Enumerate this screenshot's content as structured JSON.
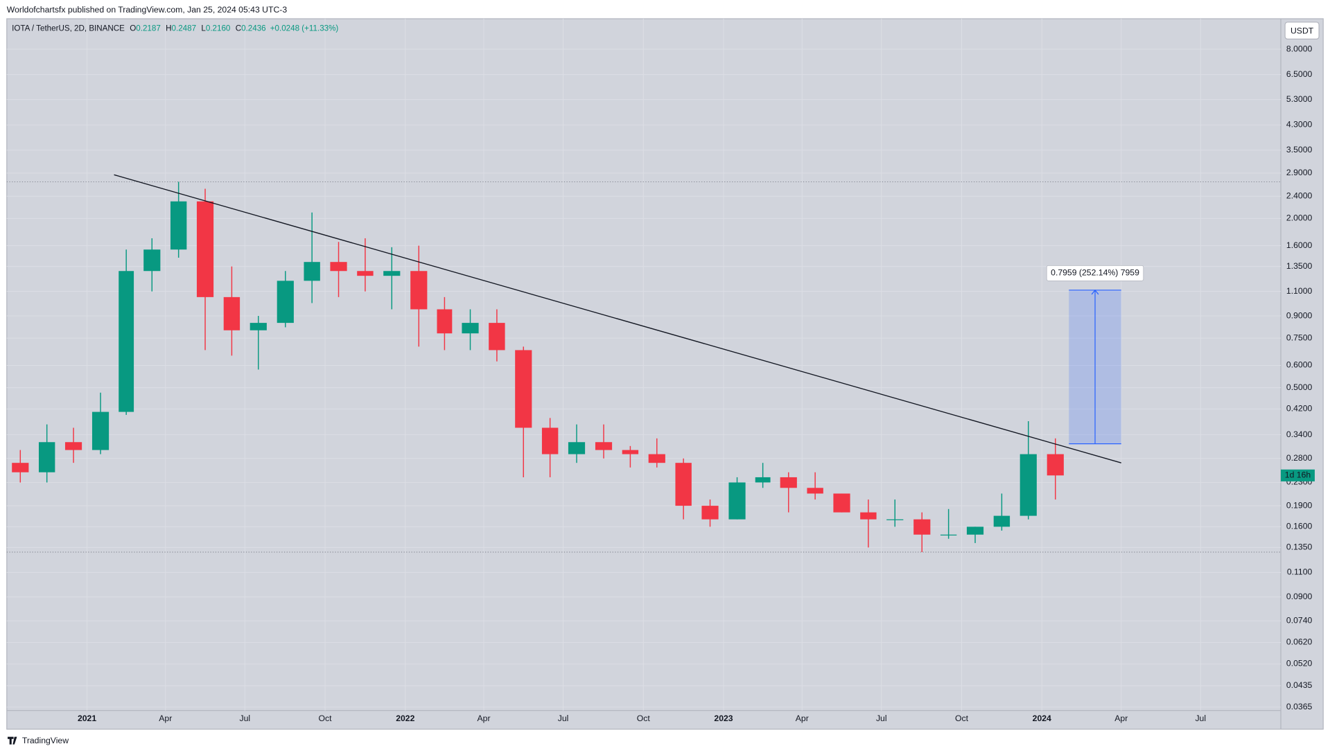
{
  "header": "Worldofchartsfx published on TradingView.com, Jan 25, 2024 05:43 UTC-3",
  "footer": "TradingView",
  "chart_data": {
    "type": "candlestick",
    "symbol": "IOTA / TetherUS, 2D, BINANCE",
    "legend": [
      {
        "label": "O",
        "value": "0.2187"
      },
      {
        "label": "H",
        "value": "0.2487"
      },
      {
        "label": "L",
        "value": "0.2160"
      },
      {
        "label": "C",
        "value": "0.2436"
      }
    ],
    "change": "+0.0248 (+11.33%)",
    "currency": "USDT",
    "countdown": "1d 16h",
    "up_color": "#089981",
    "down_color": "#f23645",
    "log_scale": true,
    "grid": true,
    "x": [
      "2020-10",
      "2020-11",
      "2020-12",
      "2021-01",
      "2021-02",
      "2021-03",
      "2021-04",
      "2021-05",
      "2021-06",
      "2021-07",
      "2021-08",
      "2021-09",
      "2021-10",
      "2021-11",
      "2021-12",
      "2022-01",
      "2022-02",
      "2022-03",
      "2022-04",
      "2022-05",
      "2022-06",
      "2022-07",
      "2022-08",
      "2022-09",
      "2022-10",
      "2022-11",
      "2022-12",
      "2023-01",
      "2023-02",
      "2023-03",
      "2023-04",
      "2023-05",
      "2023-06",
      "2023-07",
      "2023-08",
      "2023-09",
      "2023-10",
      "2023-11",
      "2023-12",
      "2024-01"
    ],
    "open": [
      0.27,
      0.25,
      0.32,
      0.3,
      0.41,
      1.3,
      1.55,
      2.3,
      1.05,
      0.8,
      0.85,
      1.2,
      1.4,
      1.3,
      1.25,
      1.3,
      0.95,
      0.78,
      0.85,
      0.68,
      0.36,
      0.29,
      0.32,
      0.3,
      0.29,
      0.27,
      0.19,
      0.17,
      0.23,
      0.24,
      0.22,
      0.21,
      0.18,
      0.17,
      0.17,
      0.15,
      0.15,
      0.16,
      0.175,
      0.29
    ],
    "high": [
      0.3,
      0.37,
      0.36,
      0.48,
      1.55,
      1.7,
      2.7,
      2.55,
      1.35,
      0.9,
      1.3,
      2.1,
      1.65,
      1.7,
      1.58,
      1.6,
      1.05,
      0.95,
      0.95,
      0.7,
      0.39,
      0.37,
      0.37,
      0.31,
      0.33,
      0.28,
      0.2,
      0.24,
      0.27,
      0.25,
      0.25,
      0.21,
      0.2,
      0.2,
      0.18,
      0.185,
      0.16,
      0.21,
      0.38,
      0.33
    ],
    "low": [
      0.23,
      0.23,
      0.27,
      0.29,
      0.4,
      1.1,
      1.45,
      0.68,
      0.65,
      0.58,
      0.82,
      1.0,
      1.05,
      1.1,
      0.95,
      0.7,
      0.68,
      0.68,
      0.62,
      0.24,
      0.24,
      0.27,
      0.28,
      0.26,
      0.26,
      0.17,
      0.16,
      0.17,
      0.22,
      0.18,
      0.2,
      0.18,
      0.135,
      0.16,
      0.13,
      0.145,
      0.14,
      0.155,
      0.17,
      0.2
    ],
    "close": [
      0.25,
      0.32,
      0.3,
      0.41,
      1.3,
      1.55,
      2.3,
      1.05,
      0.8,
      0.85,
      1.2,
      1.4,
      1.3,
      1.25,
      1.3,
      0.95,
      0.78,
      0.85,
      0.68,
      0.36,
      0.29,
      0.32,
      0.3,
      0.29,
      0.27,
      0.19,
      0.17,
      0.23,
      0.24,
      0.22,
      0.21,
      0.18,
      0.17,
      0.17,
      0.15,
      0.15,
      0.16,
      0.175,
      0.29,
      0.2436
    ],
    "xlim": [
      "2020-10",
      "2024-09"
    ],
    "xticks": [
      {
        "value": "2021-01",
        "label": "2021"
      },
      {
        "value": "2021-04",
        "label": "Apr"
      },
      {
        "value": "2021-07",
        "label": "Jul"
      },
      {
        "value": "2021-10",
        "label": "Oct"
      },
      {
        "value": "2022-01",
        "label": "2022"
      },
      {
        "value": "2022-04",
        "label": "Apr"
      },
      {
        "value": "2022-07",
        "label": "Jul"
      },
      {
        "value": "2022-10",
        "label": "Oct"
      },
      {
        "value": "2023-01",
        "label": "2023"
      },
      {
        "value": "2023-04",
        "label": "Apr"
      },
      {
        "value": "2023-07",
        "label": "Jul"
      },
      {
        "value": "2023-10",
        "label": "Oct"
      },
      {
        "value": "2024-01",
        "label": "2024"
      },
      {
        "value": "2024-04",
        "label": "Apr"
      },
      {
        "value": "2024-07",
        "label": "Jul"
      }
    ],
    "ylim": [
      0.0355,
      10.27
    ],
    "yticks": [
      {
        "value": 8,
        "label": "8.0000"
      },
      {
        "value": 6.5,
        "label": "6.5000"
      },
      {
        "value": 5.3,
        "label": "5.3000"
      },
      {
        "value": 4.3,
        "label": "4.3000"
      },
      {
        "value": 3.5,
        "label": "3.5000"
      },
      {
        "value": 2.9,
        "label": "2.9000"
      },
      {
        "value": 2.4,
        "label": "2.4000"
      },
      {
        "value": 2,
        "label": "2.0000"
      },
      {
        "value": 1.6,
        "label": "1.6000"
      },
      {
        "value": 1.35,
        "label": "1.3500"
      },
      {
        "value": 1.1,
        "label": "1.1000"
      },
      {
        "value": 0.9,
        "label": "0.9000"
      },
      {
        "value": 0.75,
        "label": "0.7500"
      },
      {
        "value": 0.6,
        "label": "0.6000"
      },
      {
        "value": 0.5,
        "label": "0.5000"
      },
      {
        "value": 0.42,
        "label": "0.4200"
      },
      {
        "value": 0.34,
        "label": "0.3400"
      },
      {
        "value": 0.28,
        "label": "0.2800"
      },
      {
        "value": 0.23,
        "label": "0.2300"
      },
      {
        "value": 0.19,
        "label": "0.1900"
      },
      {
        "value": 0.16,
        "label": "0.1600"
      },
      {
        "value": 0.135,
        "label": "0.1350"
      },
      {
        "value": 0.11,
        "label": "0.1100"
      },
      {
        "value": 0.09,
        "label": "0.0900"
      },
      {
        "value": 0.074,
        "label": "0.0740"
      },
      {
        "value": 0.062,
        "label": "0.0620"
      },
      {
        "value": 0.052,
        "label": "0.0520"
      },
      {
        "value": 0.0435,
        "label": "0.0435"
      },
      {
        "value": 0.0365,
        "label": "0.0365"
      }
    ],
    "trendline": {
      "x": [
        "2021-02",
        "2024-04"
      ],
      "y": [
        2.86,
        0.27
      ],
      "color": "#131722"
    },
    "measure": {
      "x": [
        "2024-02",
        "2024-04"
      ],
      "y": [
        0.3157,
        1.1116
      ],
      "label": "0.7959 (252.14%) 7959",
      "color": "#2962ff"
    }
  }
}
